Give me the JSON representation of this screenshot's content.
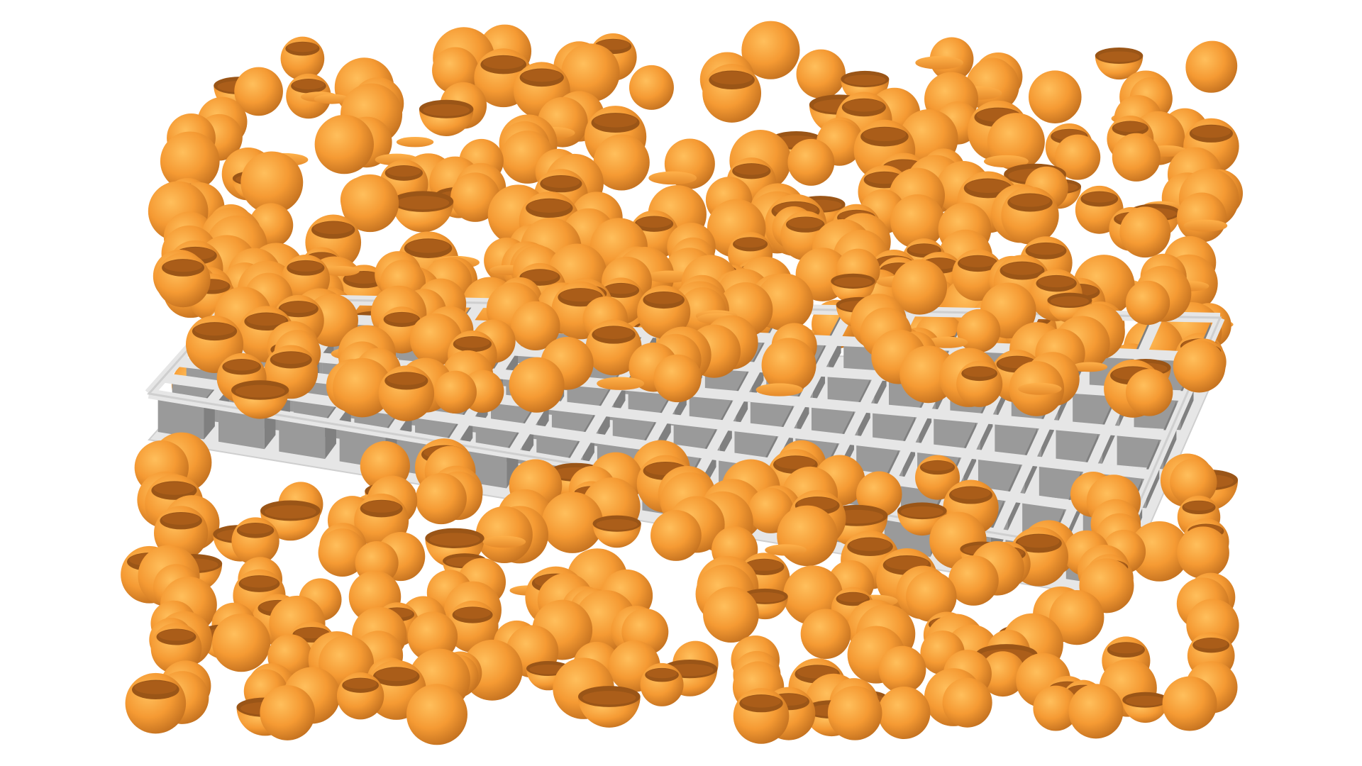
{
  "scene": {
    "title": "",
    "colors": {
      "background": "#ffffff",
      "particle_light": "#ffb347",
      "particle_base": "#f59a33",
      "particle_dark": "#b8641c",
      "particle_inner": "#9a5517",
      "plate_light": "#e6e6e6",
      "plate_edge": "#cfcfcf",
      "wall_front": "#9a9a9a",
      "wall_side": "#808080"
    },
    "particle_shape": "sphere",
    "particle_variants": [
      "whole-sphere",
      "cut-sphere",
      "hemisphere-shell",
      "disc-slice"
    ],
    "grid_structure": {
      "type": "square-cell-lattice",
      "columns": 16,
      "rows": 6,
      "layers": 2
    }
  }
}
